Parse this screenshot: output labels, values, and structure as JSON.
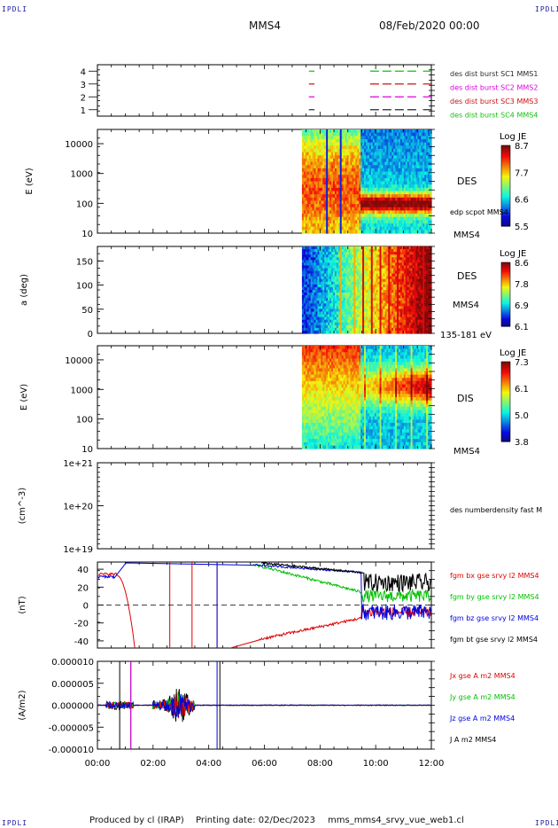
{
  "header": {
    "corner_label": "IPDLI",
    "spacecraft": "MMS4",
    "datetime": "08/Feb/2020 00:00"
  },
  "footer": {
    "produced_by": "Produced by cl (IRAP)",
    "printing_date": "Printing date: 02/Dec/2023",
    "filename": "mms_mms4_srvy_vue_web1.cl"
  },
  "colors": {
    "mms1": "#2a2a2a",
    "mms2": "#e000e0",
    "mms3": "#d01010",
    "mms4": "#10c010",
    "bx": "#e00000",
    "by": "#00c000",
    "bz": "#0000e0",
    "bt": "#000000"
  },
  "chart_data": [
    {
      "type": "line",
      "panel": "burst-availability",
      "yticks": [
        "1",
        "2",
        "3",
        "4"
      ],
      "ylim": [
        0.5,
        4.5
      ],
      "series": [
        {
          "name": "des dist burst SC1 MMS1",
          "color": "#2a2a2a",
          "y": 1,
          "segments": [
            [
              7.6,
              7.8
            ],
            [
              9.8,
              11.5
            ],
            [
              11.7,
              12.0
            ]
          ]
        },
        {
          "name": "des dist burst SC2 MMS2",
          "color": "#e000e0",
          "y": 2,
          "segments": [
            [
              7.6,
              7.8
            ],
            [
              9.8,
              11.5
            ],
            [
              11.7,
              12.0
            ]
          ]
        },
        {
          "name": "des dist burst SC3 MMS3",
          "color": "#d01010",
          "y": 3,
          "segments": [
            [
              7.6,
              7.8
            ],
            [
              9.8,
              11.5
            ],
            [
              11.7,
              12.0
            ]
          ]
        },
        {
          "name": "des dist burst SC4 MMS4",
          "color": "#10c010",
          "y": 4,
          "segments": [
            [
              7.6,
              7.8
            ],
            [
              9.8,
              11.5
            ],
            [
              11.7,
              12.0
            ]
          ]
        }
      ]
    },
    {
      "type": "heatmap",
      "panel": "des-energy",
      "ylabel": "E (eV)",
      "label": "DES",
      "annotation": "edp scpot MMS4",
      "scale": "log",
      "ylim": [
        10,
        30000
      ],
      "yticks": [
        "10",
        "100",
        "1000",
        "10000"
      ],
      "colorbar": {
        "title": "Log JE",
        "ticks": [
          "5.5",
          "6.6",
          "7.7",
          "8.7"
        ],
        "range": [
          5.5,
          8.7
        ]
      },
      "data_start_hour": 7.35
    },
    {
      "type": "heatmap",
      "panel": "des-pitch",
      "ylabel": "a (deg)",
      "label": "DES",
      "sublabel": "MMS4",
      "energy_range": "135-181 eV",
      "ylim": [
        0,
        180
      ],
      "yticks": [
        "0",
        "50",
        "100",
        "150"
      ],
      "colorbar": {
        "title": "Log JE",
        "ticks": [
          "6.1",
          "6.9",
          "7.8",
          "8.6"
        ],
        "range": [
          6.1,
          8.6
        ]
      },
      "data_start_hour": 7.35
    },
    {
      "type": "heatmap",
      "panel": "dis-energy",
      "ylabel": "E (eV)",
      "label": "DIS",
      "spacecraft": "MMS4",
      "scale": "log",
      "ylim": [
        10,
        30000
      ],
      "yticks": [
        "10",
        "100",
        "1000",
        "10000"
      ],
      "colorbar": {
        "title": "Log JE",
        "ticks": [
          "3.8",
          "5.0",
          "6.1",
          "7.3"
        ],
        "range": [
          3.8,
          7.3
        ]
      },
      "data_start_hour": 7.35
    },
    {
      "type": "line",
      "panel": "density",
      "ylabel": "(cm^-3)",
      "scale": "log",
      "yticks": [
        "1e+19",
        "1e+20",
        "1e+21"
      ],
      "ylim": [
        1e+19,
        1e+21
      ],
      "series": [
        {
          "name": "des numberdensity fast M",
          "values": []
        }
      ]
    },
    {
      "type": "line",
      "panel": "magnetic-field",
      "ylabel": "(nT)",
      "ylim": [
        -48,
        48
      ],
      "yticks": [
        "-40",
        "-20",
        "0",
        "20",
        "40"
      ],
      "series": [
        {
          "name": "fgm bx gse srvy l2 MMS4",
          "color": "#e00000"
        },
        {
          "name": "fgm by gse srvy l2 MMS4",
          "color": "#00c000"
        },
        {
          "name": "fgm bz gse srvy l2 MMS4",
          "color": "#0000e0"
        },
        {
          "name": "fgm bt gse srvy l2 MMS4",
          "color": "#000000"
        }
      ]
    },
    {
      "type": "line",
      "panel": "current-density",
      "ylabel": "(A/m2)",
      "ylim": [
        -0.0001,
        0.0001
      ],
      "yticks": [
        "-0.000010",
        "-0.000005",
        "0.000000",
        "0.000005",
        "0.000010"
      ],
      "series": [
        {
          "name": "Jx gse A m2 MMS4",
          "color": "#e00000"
        },
        {
          "name": "Jy gse A m2 MMS4",
          "color": "#00c000"
        },
        {
          "name": "Jz gse A m2 MMS4",
          "color": "#0000e0"
        },
        {
          "name": "J A m2 MMS4",
          "color": "#000000"
        }
      ]
    }
  ],
  "time_axis": {
    "xlim": [
      0,
      12
    ],
    "ticks": [
      "00:00",
      "02:00",
      "04:00",
      "06:00",
      "08:00",
      "10:00",
      "12:00"
    ]
  }
}
